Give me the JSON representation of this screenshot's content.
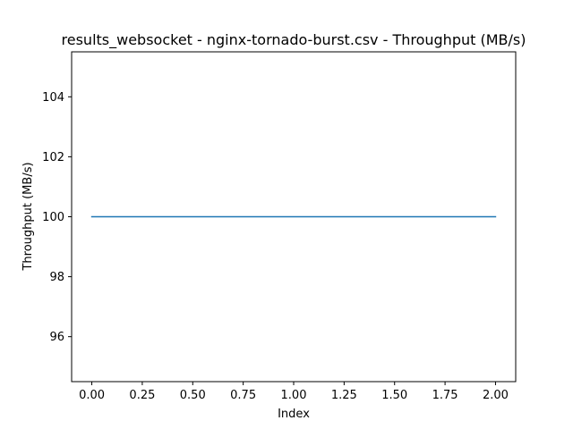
{
  "chart_data": {
    "type": "line",
    "title": "results_websocket - nginx-tornado-burst.csv - Throughput (MB/s)",
    "xlabel": "Index",
    "ylabel": "Throughput (MB/s)",
    "xlim": [
      -0.1,
      2.1
    ],
    "ylim": [
      94.5,
      105.5
    ],
    "xticks": [
      0.0,
      0.25,
      0.5,
      0.75,
      1.0,
      1.25,
      1.5,
      1.75,
      2.0
    ],
    "xtick_labels": [
      "0.00",
      "0.25",
      "0.50",
      "0.75",
      "1.00",
      "1.25",
      "1.50",
      "1.75",
      "2.00"
    ],
    "yticks": [
      96,
      98,
      100,
      102,
      104
    ],
    "ytick_labels": [
      "96",
      "98",
      "100",
      "102",
      "104"
    ],
    "grid": false,
    "series": [
      {
        "color": "#1f77b4",
        "x": [
          0,
          1,
          2
        ],
        "y": [
          100,
          100,
          100
        ]
      }
    ]
  }
}
